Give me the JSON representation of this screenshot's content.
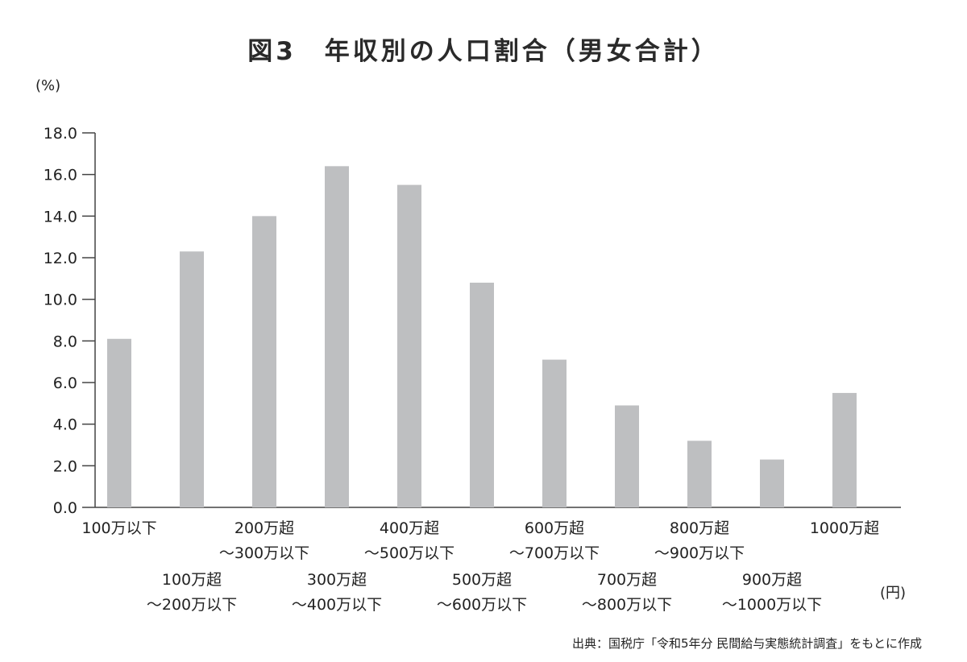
{
  "title": "図3　年収別の人口割合（男女合計）",
  "y_unit": "(%)",
  "x_unit": "(円)",
  "source": "出典：国税庁「令和5年分 民間給与実態統計調査」をもとに作成",
  "colors": {
    "bar": "#bebfc1",
    "axis": "#444444"
  },
  "chart_data": {
    "type": "bar",
    "title": "図3　年収別の人口割合（男女合計）",
    "xlabel": "",
    "ylabel": "",
    "ylim": [
      0,
      18
    ],
    "yticks": [
      "0.0",
      "2.0",
      "4.0",
      "6.0",
      "8.0",
      "10.0",
      "12.0",
      "14.0",
      "16.0",
      "18.0"
    ],
    "grid": false,
    "categories": [
      [
        "100万以下"
      ],
      [
        "100万超",
        "～200万以下"
      ],
      [
        "200万超",
        "～300万以下"
      ],
      [
        "300万超",
        "～400万以下"
      ],
      [
        "400万超",
        "～500万以下"
      ],
      [
        "500万超",
        "～600万以下"
      ],
      [
        "600万超",
        "～700万以下"
      ],
      [
        "700万超",
        "～800万以下"
      ],
      [
        "800万超",
        "～900万以下"
      ],
      [
        "900万超",
        "～1000万以下"
      ],
      [
        "1000万超"
      ]
    ],
    "values": [
      8.1,
      12.3,
      14.0,
      16.4,
      15.5,
      10.8,
      7.1,
      4.9,
      3.2,
      2.3,
      5.5
    ]
  }
}
